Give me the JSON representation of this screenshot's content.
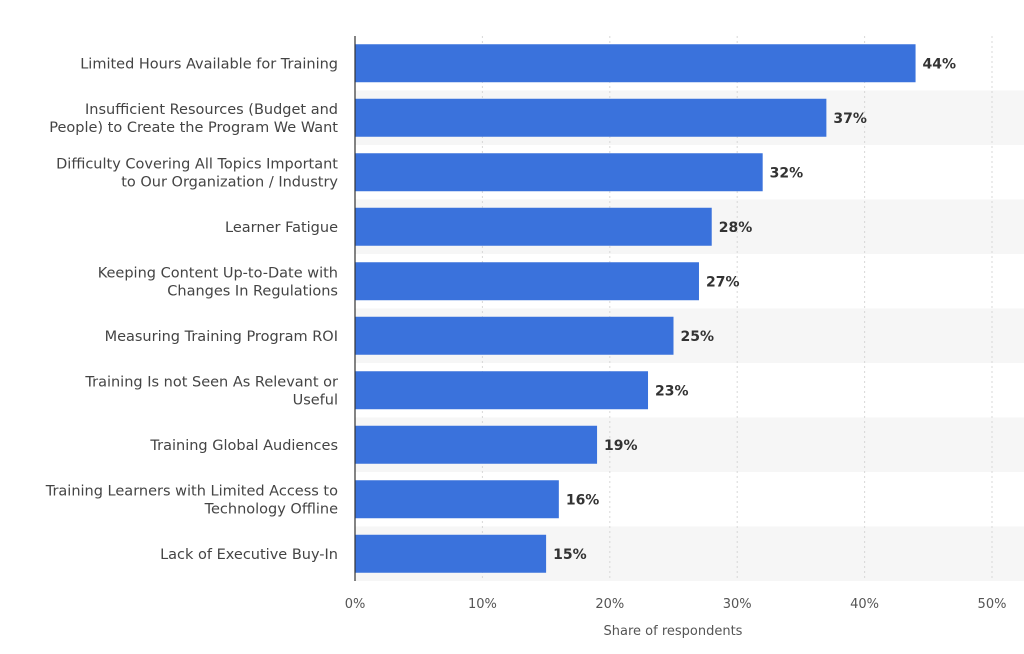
{
  "chart_data": {
    "type": "bar",
    "orientation": "horizontal",
    "categories": [
      [
        "Limited Hours Available for Training"
      ],
      [
        "Insufficient Resources (Budget and",
        "People) to Create the Program We Want"
      ],
      [
        "Difficulty Covering All Topics Important",
        "to Our Organization / Industry"
      ],
      [
        "Learner Fatigue"
      ],
      [
        "Keeping Content Up-to-Date with",
        "Changes In Regulations"
      ],
      [
        "Measuring Training Program ROI"
      ],
      [
        "Training Is not Seen As Relevant or",
        "Useful"
      ],
      [
        "Training Global Audiences"
      ],
      [
        "Training Learners with Limited Access to",
        "Technology Offline"
      ],
      [
        "Lack of Executive Buy-In"
      ]
    ],
    "values": [
      44,
      37,
      32,
      28,
      27,
      25,
      23,
      19,
      16,
      15
    ],
    "value_labels": [
      "44%",
      "37%",
      "32%",
      "28%",
      "27%",
      "25%",
      "23%",
      "19%",
      "16%",
      "15%"
    ],
    "xlim": [
      0,
      50
    ],
    "xticks": [
      0,
      10,
      20,
      30,
      40,
      50
    ],
    "xtick_labels": [
      "0%",
      "10%",
      "20%",
      "30%",
      "40%",
      "50%"
    ],
    "xlabel": "Share of respondents",
    "ylabel": "",
    "grid": true,
    "bar_color": "#3a72dc",
    "stripe_color": "#f6f6f6",
    "grid_color": "#d8d8d8"
  }
}
